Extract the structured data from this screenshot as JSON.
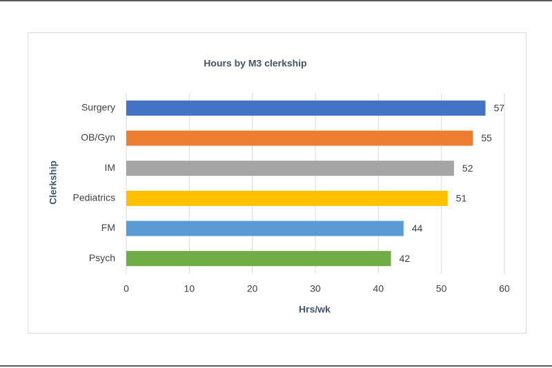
{
  "chart_data": {
    "type": "bar",
    "orientation": "horizontal",
    "title": "Hours by M3 clerkship",
    "x_label": "Hrs/wk",
    "y_label": "Clerkship",
    "categories": [
      "Surgery",
      "OB/Gyn",
      "IM",
      "Pediatrics",
      "FM",
      "Psych"
    ],
    "values": [
      57,
      55,
      52,
      51,
      44,
      42
    ],
    "colors": [
      "#4472c4",
      "#ed7d31",
      "#a5a5a5",
      "#ffc000",
      "#5b9bd5",
      "#70ad47"
    ],
    "xlim": [
      0,
      60
    ],
    "xticks": [
      0,
      10,
      20,
      30,
      40,
      50,
      60
    ],
    "grid": true
  }
}
